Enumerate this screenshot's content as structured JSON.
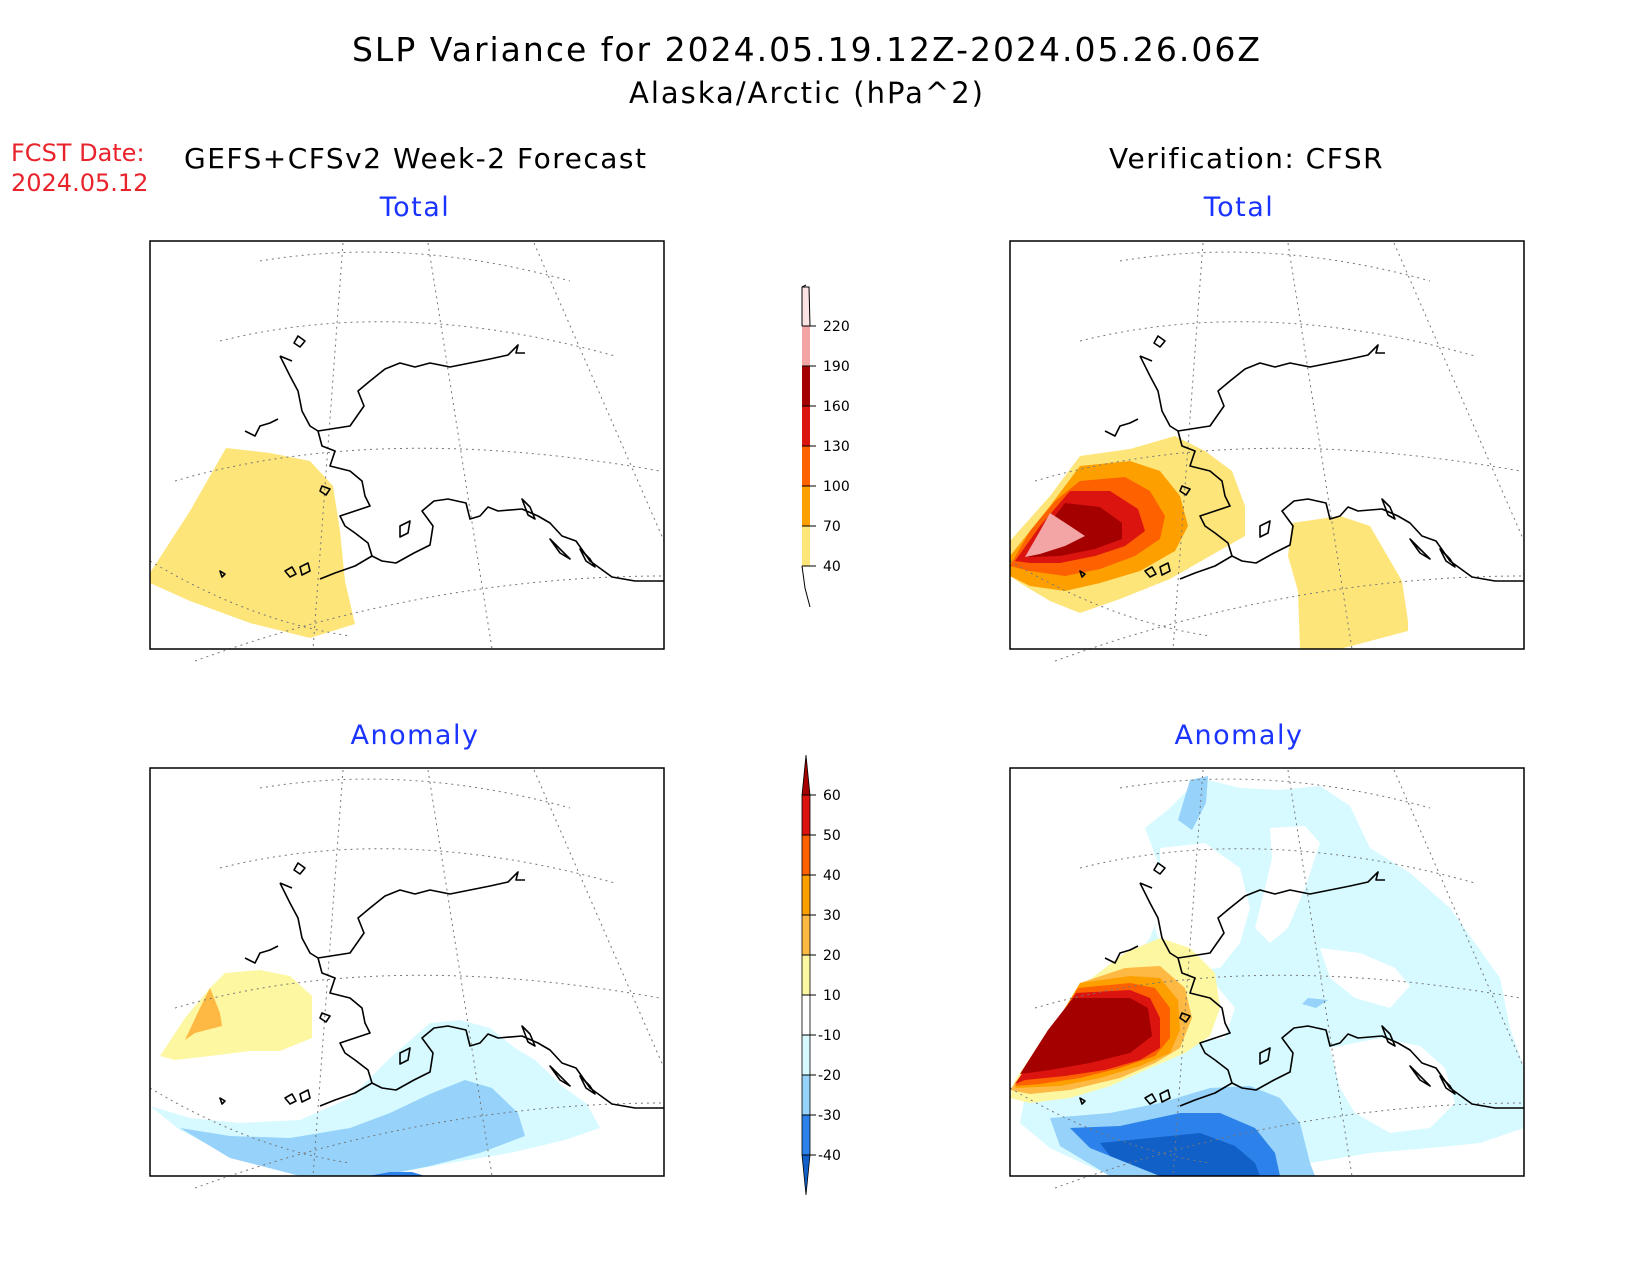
{
  "title": "SLP Variance for 2024.05.19.12Z-2024.05.26.06Z",
  "subtitle": "Alaska/Arctic (hPa^2)",
  "fcst_date_label": "FCST Date:",
  "fcst_date_value": "2024.05.12",
  "left_column_title": "GEFS+CFSv2 Week-2 Forecast",
  "right_column_title": "Verification: CFSR",
  "panels": {
    "top_left": "Total",
    "top_right": "Total",
    "bottom_left": "Anomaly",
    "bottom_right": "Anomaly"
  },
  "colors": {
    "title_text": "#000000",
    "fcst_text": "#e8232b",
    "panel_label": "#1a33ff"
  },
  "total_colorbar": {
    "labels": [
      "220",
      "190",
      "160",
      "130",
      "100",
      "70",
      "40"
    ],
    "colors": [
      "#fbe3e3",
      "#f3a4a4",
      "#a50000",
      "#dc1410",
      "#fe6100",
      "#fe9f00",
      "#fee57a"
    ]
  },
  "anomaly_colorbar": {
    "labels": [
      "60",
      "50",
      "40",
      "30",
      "20",
      "10",
      "-10",
      "-20",
      "-30",
      "-40"
    ],
    "colors": [
      "#a50000",
      "#dc1410",
      "#fe6100",
      "#fe9f00",
      "#fdb944",
      "#fdf7a1",
      "#ffffff",
      "#d6faff",
      "#96d2fa",
      "#2c82ea",
      "#1060c8"
    ]
  }
}
